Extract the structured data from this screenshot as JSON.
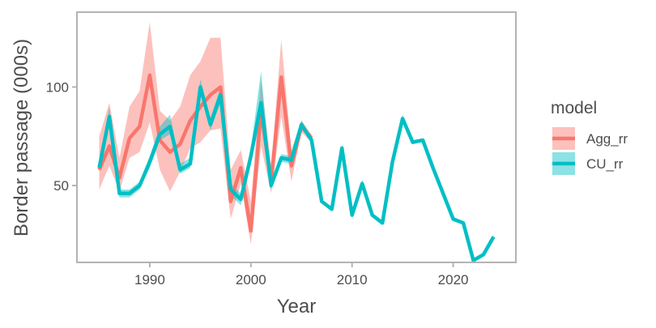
{
  "chart_data": {
    "type": "line",
    "xlabel": "Year",
    "ylabel": "Border passage (000s)",
    "xlim": [
      1982.8,
      2026.2
    ],
    "ylim": [
      11,
      138
    ],
    "x_ticks": [
      1990,
      2000,
      2010,
      2020
    ],
    "y_ticks": [
      50,
      100
    ],
    "x_tick_labels": [
      "1990",
      "2000",
      "2010",
      "2020"
    ],
    "y_tick_labels": [
      "50",
      "100"
    ],
    "grid": false,
    "legend": {
      "title": "model",
      "placement": "right"
    },
    "series": [
      {
        "name": "Agg_rr",
        "color": "#F8766D",
        "x": [
          1985,
          1986,
          1987,
          1988,
          1989,
          1990,
          1991,
          1992,
          1993,
          1994,
          1995,
          1996,
          1997,
          1998,
          1999,
          2000,
          2001,
          2002,
          2003,
          2004,
          2005,
          2006
        ],
        "y": [
          58,
          70,
          54,
          74,
          80,
          106,
          73,
          67,
          71,
          83,
          90,
          96,
          100,
          42,
          59,
          27,
          88,
          52,
          105,
          60,
          80,
          74
        ],
        "lower": [
          48,
          60,
          47,
          64,
          67,
          82,
          58,
          47,
          57,
          69,
          72,
          78,
          79,
          33,
          51,
          20,
          70,
          46,
          85,
          52,
          77,
          72
        ],
        "upper": [
          75,
          92,
          64,
          90,
          98,
          133,
          88,
          83,
          90,
          106,
          113,
          125,
          125,
          58,
          68,
          42,
          104,
          60,
          124,
          68,
          83,
          76
        ]
      },
      {
        "name": "CU_rr",
        "color": "#00BFC4",
        "x": [
          1985,
          1986,
          1987,
          1988,
          1989,
          1990,
          1991,
          1992,
          1993,
          1994,
          1995,
          1996,
          1997,
          1998,
          1999,
          2000,
          2001,
          2002,
          2003,
          2004,
          2005,
          2006,
          2007,
          2008,
          2009,
          2010,
          2011,
          2012,
          2013,
          2014,
          2015,
          2016,
          2017,
          2018,
          2019,
          2020,
          2021,
          2022,
          2023,
          2024
        ],
        "y": [
          59,
          85,
          46,
          46,
          50,
          62,
          76,
          80,
          58,
          61,
          100,
          81,
          96,
          48,
          43,
          65,
          92,
          50,
          64,
          63,
          81,
          73,
          42,
          38,
          69,
          35,
          51,
          35,
          31,
          62,
          84,
          72,
          73,
          59,
          46,
          33,
          31,
          12,
          15,
          24
        ],
        "lower": [
          57,
          80,
          44,
          44,
          48,
          59,
          73,
          76,
          56,
          59,
          97,
          78,
          92,
          45,
          40,
          61,
          86,
          48,
          62,
          61,
          79,
          72,
          41,
          37,
          67,
          34,
          49,
          34,
          30,
          61,
          82,
          71,
          72,
          58,
          45,
          32,
          30,
          11,
          14,
          23
        ],
        "upper": [
          61,
          90,
          48,
          48,
          52,
          65,
          80,
          86,
          61,
          64,
          104,
          84,
          100,
          51,
          46,
          69,
          108,
          53,
          66,
          65,
          83,
          74,
          43,
          39,
          71,
          36,
          53,
          36,
          32,
          63,
          86,
          73,
          74,
          60,
          47,
          34,
          32,
          13,
          16,
          25
        ]
      }
    ]
  }
}
